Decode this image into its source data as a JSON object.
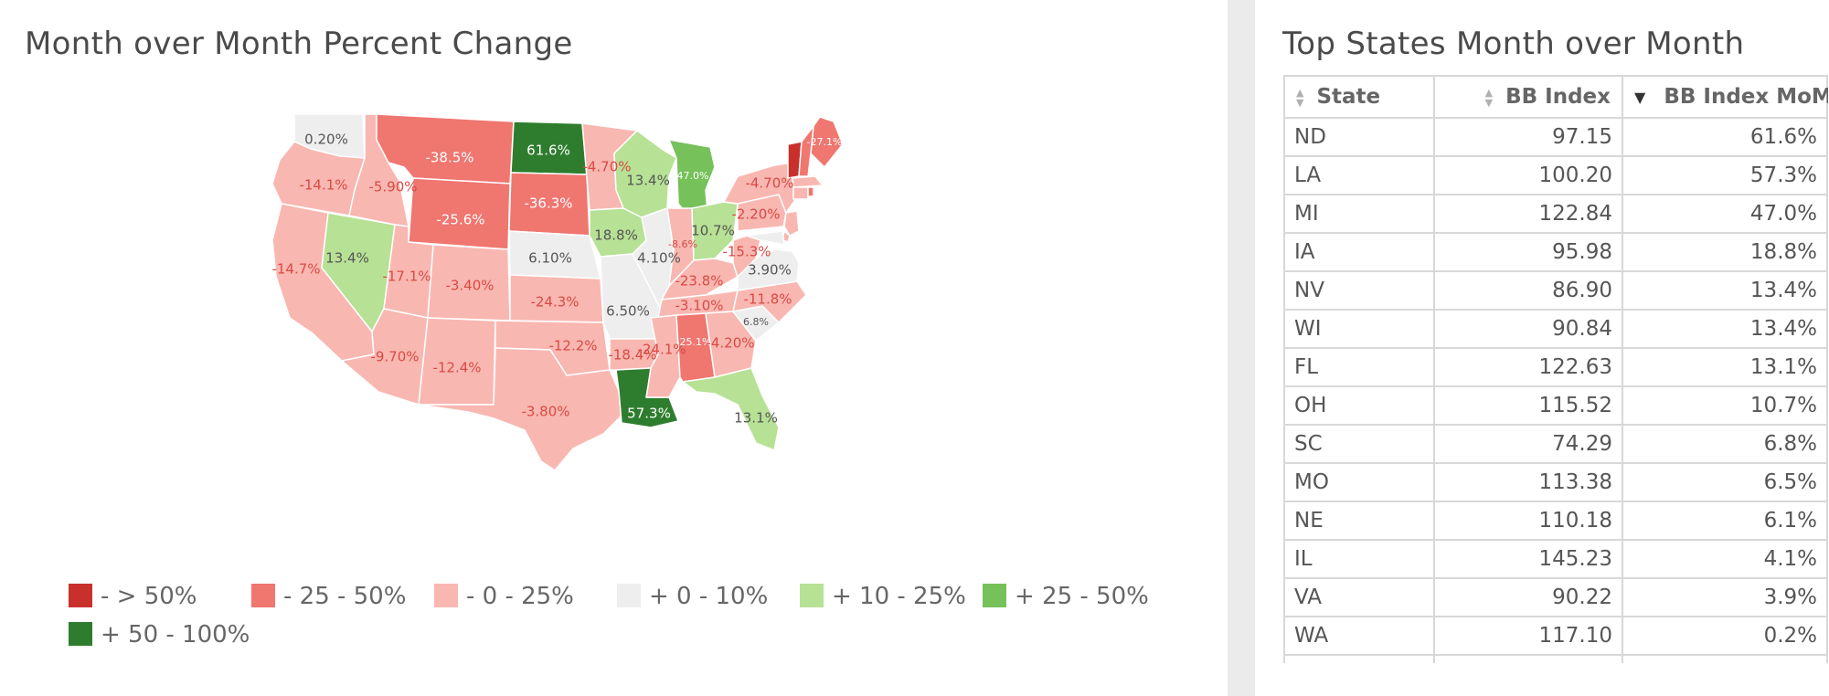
{
  "map": {
    "title": "Month over Month Percent Change",
    "colors": {
      "dark_red": "#c9302c",
      "red": "#f07670",
      "light_red": "#f9b7b1",
      "neutral": "#eeeeee",
      "light_green": "#b7e195",
      "green": "#76c15a",
      "dark_green": "#2e7d2e"
    },
    "states": [
      {
        "abbr": "WA",
        "value": "0.20%",
        "bucket": "neutral"
      },
      {
        "abbr": "OR",
        "value": "-14.1%",
        "bucket": "light_red"
      },
      {
        "abbr": "CA",
        "value": "-14.7%",
        "bucket": "light_red"
      },
      {
        "abbr": "NV",
        "value": "13.4%",
        "bucket": "light_green"
      },
      {
        "abbr": "ID",
        "value": "-5.90%",
        "bucket": "light_red"
      },
      {
        "abbr": "MT",
        "value": "-38.5%",
        "bucket": "red"
      },
      {
        "abbr": "WY",
        "value": "-25.6%",
        "bucket": "red"
      },
      {
        "abbr": "UT",
        "value": "-17.1%",
        "bucket": "light_red"
      },
      {
        "abbr": "AZ",
        "value": "-9.70%",
        "bucket": "light_red"
      },
      {
        "abbr": "CO",
        "value": "-3.40%",
        "bucket": "light_red"
      },
      {
        "abbr": "NM",
        "value": "-12.4%",
        "bucket": "light_red"
      },
      {
        "abbr": "ND",
        "value": "61.6%",
        "bucket": "dark_green"
      },
      {
        "abbr": "SD",
        "value": "-36.3%",
        "bucket": "red"
      },
      {
        "abbr": "NE",
        "value": "6.10%",
        "bucket": "neutral"
      },
      {
        "abbr": "KS",
        "value": "-24.3%",
        "bucket": "light_red"
      },
      {
        "abbr": "OK",
        "value": "-12.2%",
        "bucket": "light_red"
      },
      {
        "abbr": "TX",
        "value": "-3.80%",
        "bucket": "light_red"
      },
      {
        "abbr": "MN",
        "value": "-4.70%",
        "bucket": "light_red"
      },
      {
        "abbr": "IA",
        "value": "18.8%",
        "bucket": "light_green"
      },
      {
        "abbr": "MO",
        "value": "6.50%",
        "bucket": "neutral"
      },
      {
        "abbr": "AR",
        "value": "-18.4%",
        "bucket": "light_red"
      },
      {
        "abbr": "LA",
        "value": "57.3%",
        "bucket": "dark_green"
      },
      {
        "abbr": "WI",
        "value": "13.4%",
        "bucket": "light_green"
      },
      {
        "abbr": "IL",
        "value": "4.10%",
        "bucket": "neutral"
      },
      {
        "abbr": "MI",
        "value": "47.0%",
        "bucket": "green"
      },
      {
        "abbr": "IN",
        "value": "-8.6%",
        "bucket": "light_red"
      },
      {
        "abbr": "OH",
        "value": "10.7%",
        "bucket": "light_green"
      },
      {
        "abbr": "KY",
        "value": "-23.8%",
        "bucket": "light_red"
      },
      {
        "abbr": "TN",
        "value": "-3.10%",
        "bucket": "light_red"
      },
      {
        "abbr": "MS",
        "value": "-24.1%",
        "bucket": "light_red"
      },
      {
        "abbr": "AL",
        "value": "-25.1%",
        "bucket": "red"
      },
      {
        "abbr": "GA",
        "value": "-4.20%",
        "bucket": "light_red"
      },
      {
        "abbr": "FL",
        "value": "13.1%",
        "bucket": "light_green"
      },
      {
        "abbr": "SC",
        "value": "6.8%",
        "bucket": "neutral"
      },
      {
        "abbr": "NC",
        "value": "-11.8%",
        "bucket": "light_red"
      },
      {
        "abbr": "VA",
        "value": "3.90%",
        "bucket": "neutral"
      },
      {
        "abbr": "WV",
        "value": "-15.3%",
        "bucket": "light_red"
      },
      {
        "abbr": "PA",
        "value": "-2.20%",
        "bucket": "light_red"
      },
      {
        "abbr": "NY",
        "value": "-4.70%",
        "bucket": "light_red"
      },
      {
        "abbr": "ME",
        "value": "-27.1%",
        "bucket": "red"
      },
      {
        "abbr": "VT",
        "value": "",
        "bucket": "dark_red"
      },
      {
        "abbr": "NH",
        "value": "",
        "bucket": "red"
      },
      {
        "abbr": "MA",
        "value": "",
        "bucket": "light_red"
      },
      {
        "abbr": "CT",
        "value": "",
        "bucket": "light_red"
      },
      {
        "abbr": "RI",
        "value": "",
        "bucket": "red"
      },
      {
        "abbr": "NJ",
        "value": "",
        "bucket": "light_red"
      },
      {
        "abbr": "DE",
        "value": "",
        "bucket": "light_red"
      },
      {
        "abbr": "MD",
        "value": "",
        "bucket": "neutral"
      }
    ]
  },
  "legend": [
    {
      "label": "- > 50%",
      "color": "#c9302c"
    },
    {
      "label": "- 25 - 50%",
      "color": "#f07670"
    },
    {
      "label": "- 0 - 25%",
      "color": "#f9b7b1"
    },
    {
      "label": "+ 0 - 10%",
      "color": "#eeeeee"
    },
    {
      "label": "+ 10 - 25%",
      "color": "#b7e195"
    },
    {
      "label": "+ 25 - 50%",
      "color": "#76c15a"
    },
    {
      "label": "+ 50 - 100%",
      "color": "#2e7d2e"
    }
  ],
  "table": {
    "title": "Top States Month over Month",
    "headers": {
      "state": "State",
      "index": "BB Index",
      "mom": "BB Index MoM%"
    },
    "rows": [
      {
        "state": "ND",
        "index": "97.15",
        "mom": "61.6%"
      },
      {
        "state": "LA",
        "index": "100.20",
        "mom": "57.3%"
      },
      {
        "state": "MI",
        "index": "122.84",
        "mom": "47.0%"
      },
      {
        "state": "IA",
        "index": "95.98",
        "mom": "18.8%"
      },
      {
        "state": "NV",
        "index": "86.90",
        "mom": "13.4%"
      },
      {
        "state": "WI",
        "index": "90.84",
        "mom": "13.4%"
      },
      {
        "state": "FL",
        "index": "122.63",
        "mom": "13.1%"
      },
      {
        "state": "OH",
        "index": "115.52",
        "mom": "10.7%"
      },
      {
        "state": "SC",
        "index": "74.29",
        "mom": "6.8%"
      },
      {
        "state": "MO",
        "index": "113.38",
        "mom": "6.5%"
      },
      {
        "state": "NE",
        "index": "110.18",
        "mom": "6.1%"
      },
      {
        "state": "IL",
        "index": "145.23",
        "mom": "4.1%"
      },
      {
        "state": "VA",
        "index": "90.22",
        "mom": "3.9%"
      },
      {
        "state": "WA",
        "index": "117.10",
        "mom": "0.2%"
      }
    ]
  }
}
